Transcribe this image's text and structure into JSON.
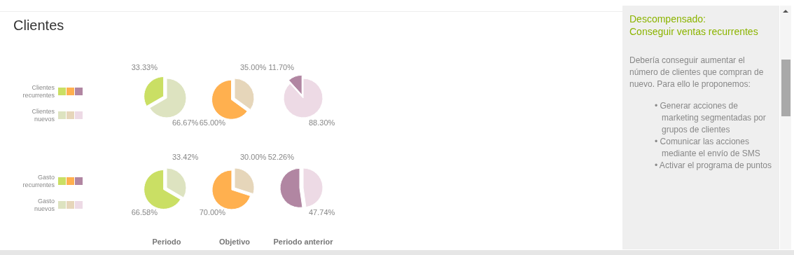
{
  "chart_data": [
    {
      "type": "pie",
      "title": "Clientes",
      "categories": [
        "Clientes recurrentes",
        "Clientes nuevos"
      ],
      "values": [
        33.33,
        66.67
      ],
      "value_labels": [
        "33.33%",
        "66.67%"
      ],
      "colors": [
        "#cadf64",
        "#dde3c0"
      ],
      "legend": "left"
    },
    {
      "type": "pie",
      "categories": [
        null,
        null
      ],
      "values": [
        65.0,
        35.0
      ],
      "value_labels": [
        "65.00%",
        "35.00%"
      ],
      "colors": [
        "#ffb04f",
        "#e6d6ba"
      ]
    },
    {
      "type": "pie",
      "categories": [
        null,
        null
      ],
      "values": [
        11.7,
        88.3
      ],
      "value_labels": [
        "11.70%",
        "88.30%"
      ],
      "colors": [
        "#b186a2",
        "#eddae5"
      ]
    },
    {
      "type": "pie",
      "xlabel": "Periodo",
      "categories": [
        "Gasto recurrentes",
        "Gasto nuevos"
      ],
      "values": [
        66.58,
        33.42
      ],
      "value_labels": [
        "66.58%",
        "33.42%"
      ],
      "colors": [
        "#cadf64",
        "#dde3c0"
      ],
      "legend": "left"
    },
    {
      "type": "pie",
      "xlabel": "Objetivo",
      "categories": [
        null,
        null
      ],
      "values": [
        70.0,
        30.0
      ],
      "value_labels": [
        "70.00%",
        "30.00%"
      ],
      "colors": [
        "#ffb04f",
        "#e6d6ba"
      ]
    },
    {
      "type": "pie",
      "xlabel": "Periodo anterior",
      "categories": [
        null,
        null
      ],
      "values": [
        52.26,
        47.74
      ],
      "value_labels": [
        "52.26%",
        "47.74%"
      ],
      "colors": [
        "#b186a2",
        "#eddae5"
      ]
    },
    {
      "type": "other",
      "title": "Descompensado:",
      "subtitle": "Conseguir ventas recurrentes",
      "annotations": [
        "Debería conseguir aumentar el número de clientes que compran de nuevo. Para ello le proponemos:",
        "• Generar acciones de marketing segmentadas por grupos de clientes",
        "• Comunicar las acciones mediante el envío de SMS",
        "• Activar el programa de puntos"
      ]
    }
  ]
}
